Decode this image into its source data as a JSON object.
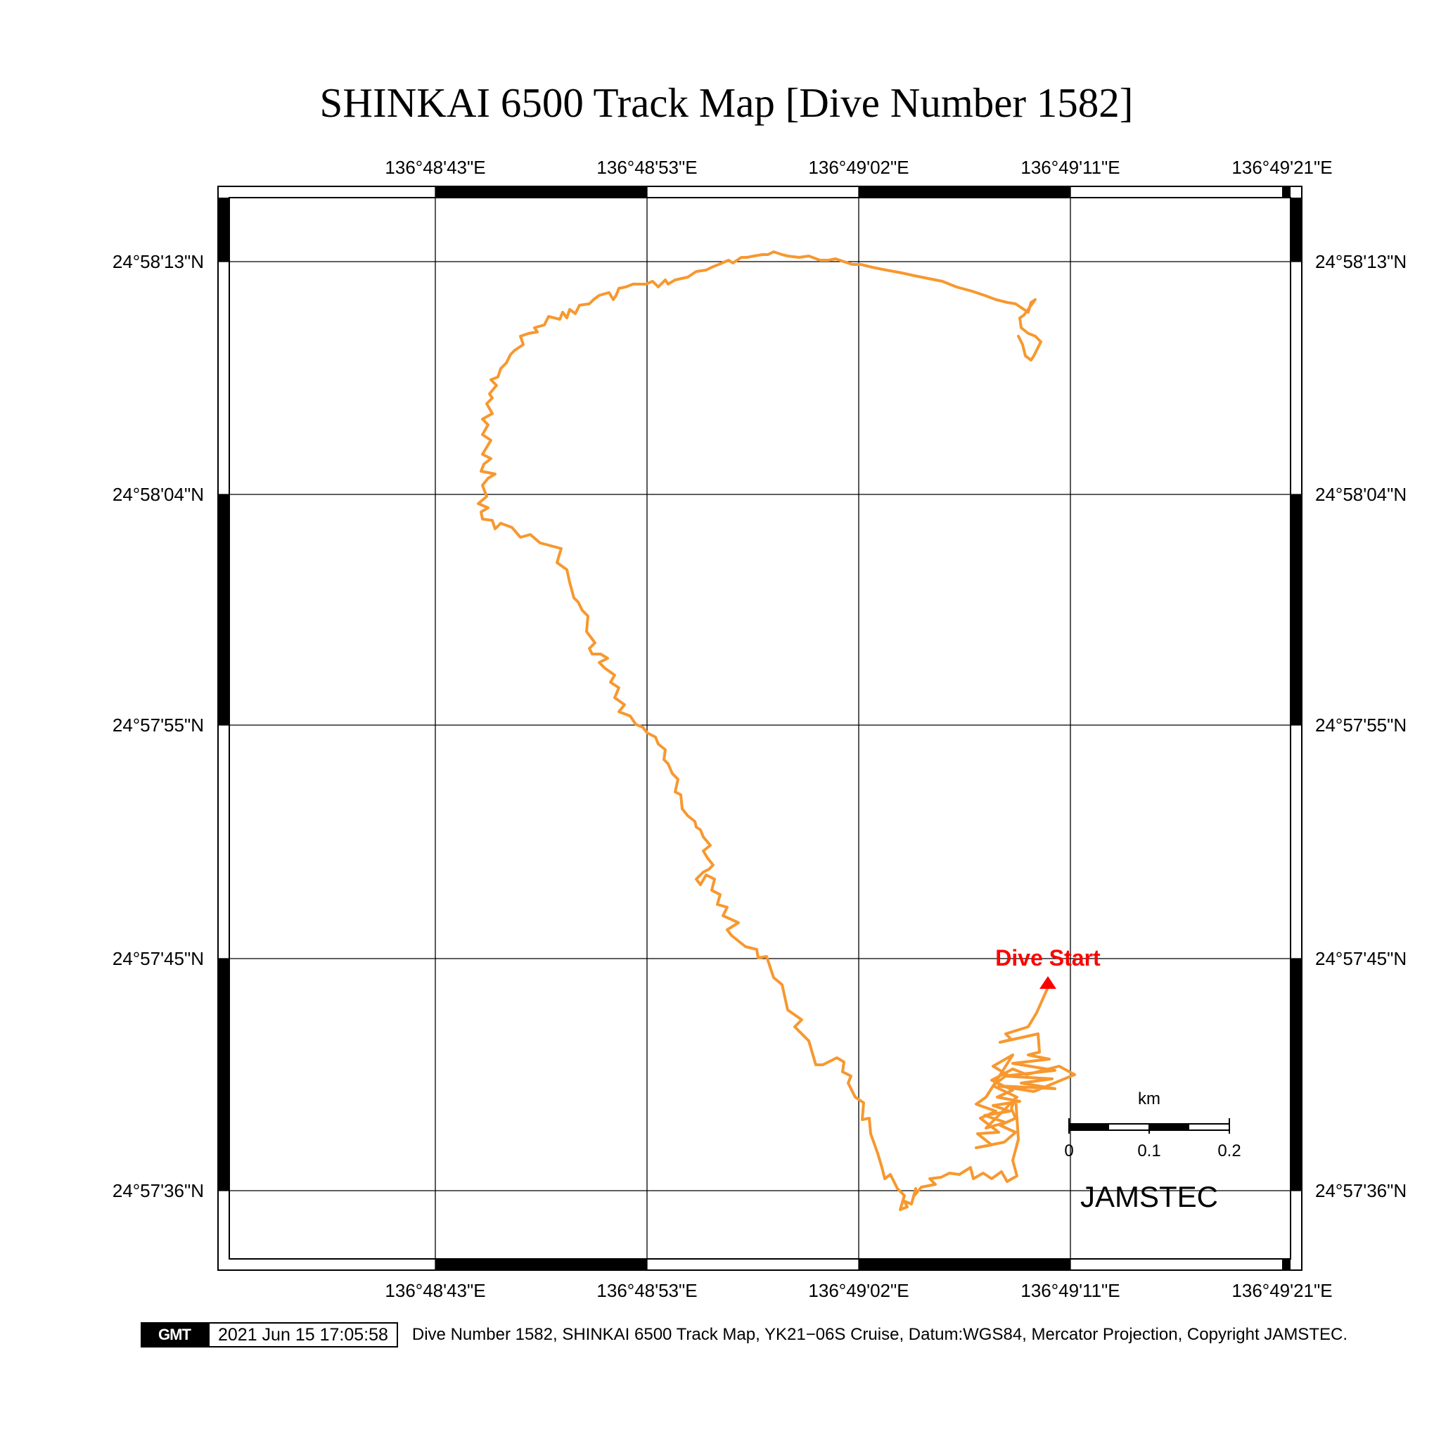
{
  "title": "SHINKAI 6500 Track Map [Dive Number 1582]",
  "lon_labels": [
    "136°48'43\"E",
    "136°48'53\"E",
    "136°49'02\"E",
    "136°49'11\"E",
    "136°49'21\"E"
  ],
  "lat_labels": [
    "24°58'13\"N",
    "24°58'04\"N",
    "24°57'55\"N",
    "24°57'45\"N",
    "24°57'36\"N"
  ],
  "start_label": "Dive Start",
  "scale_bar": {
    "unit": "km",
    "ticks": [
      "0",
      "0.1",
      "0.2"
    ]
  },
  "agency": "JAMSTEC",
  "footer": {
    "logo": "GMT",
    "timestamp": "2021 Jun 15 17:05:58",
    "caption": "Dive Number 1582, SHINKAI 6500 Track Map, YK21−06S Cruise, Datum:WGS84, Mercator Projection, Copyright JAMSTEC."
  },
  "colors": {
    "track": "#f7982f",
    "start_marker": "#ff0000"
  }
}
